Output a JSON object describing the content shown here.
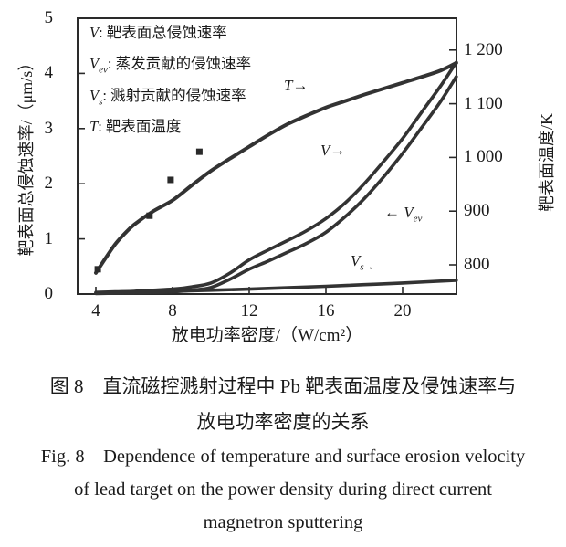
{
  "colors": {
    "curve": "#333333",
    "axis": "#2a2a2a",
    "text": "#1a1a1a",
    "background": "#ffffff"
  },
  "legend": {
    "items": [
      {
        "sym": "V",
        "sub": "",
        "desc": ": 靶表面总侵蚀速率"
      },
      {
        "sym": "V",
        "sub": "ev",
        "desc": ": 蒸发贡献的侵蚀速率"
      },
      {
        "sym": "V",
        "sub": "s",
        "desc": ": 溅射贡献的侵蚀速率"
      },
      {
        "sym": "T",
        "sub": "",
        "desc": ": 靶表面温度"
      }
    ]
  },
  "curve_labels": {
    "t": {
      "pre": "",
      "sym": "T",
      "sub": "",
      "arrow": "→"
    },
    "v": {
      "pre": "",
      "sym": "V",
      "sub": "",
      "arrow": "→"
    },
    "vev": {
      "pre": "← ",
      "sym": "V",
      "sub": "ev",
      "arrow": ""
    },
    "vs": {
      "pre": "",
      "sym": "V",
      "sub": "s→",
      "arrow": ""
    }
  },
  "figure": {
    "caption_zh_line1": "图 8　直流磁控溅射过程中 Pb 靶表面温度及侵蚀速率与",
    "caption_zh_line2": "放电功率密度的关系",
    "caption_en_line1": "Fig. 8　Dependence of temperature and surface erosion velocity",
    "caption_en_line2": "of lead target on the power density during direct current",
    "caption_en_line3": "magnetron sputtering"
  },
  "chart_data": {
    "type": "line",
    "title": "",
    "xlabel": "放电功率密度/（W/cm²）",
    "ylabel_left": "靶表面总侵蚀速率/（μm/s）",
    "ylabel_right": "靶表面温度/K",
    "xlim": [
      3.1,
      22.8
    ],
    "ylim_left": [
      0,
      5
    ],
    "ylim_right": [
      745,
      1258
    ],
    "x_tick_values": [
      4,
      8,
      12,
      16,
      20
    ],
    "x_tick_labels": [
      "4",
      "8",
      "12",
      "16",
      "20"
    ],
    "y_left_tick_values": [
      0,
      1,
      2,
      3,
      4,
      5
    ],
    "y_left_tick_labels": [
      "0",
      "1",
      "2",
      "3",
      "4",
      "5"
    ],
    "y_right_tick_values": [
      800,
      900,
      1000,
      1100,
      1200
    ],
    "y_right_tick_labels": [
      "800",
      "900",
      "1 000",
      "1 100",
      "1 200"
    ],
    "grid": false,
    "legend_position": "top-left",
    "series": [
      {
        "name": "T",
        "description": "靶表面温度 (target surface temperature, K)",
        "axis": "right",
        "width": 4,
        "points": [
          [
            4,
            785
          ],
          [
            4.5,
            812
          ],
          [
            5,
            838
          ],
          [
            5.5,
            858
          ],
          [
            6,
            875
          ],
          [
            7,
            900
          ],
          [
            8,
            920
          ],
          [
            9,
            948
          ],
          [
            10,
            975
          ],
          [
            11,
            998
          ],
          [
            12,
            1020
          ],
          [
            13,
            1042
          ],
          [
            14,
            1062
          ],
          [
            15,
            1078
          ],
          [
            16,
            1093
          ],
          [
            17,
            1105
          ],
          [
            18,
            1117
          ],
          [
            19,
            1128
          ],
          [
            20,
            1139
          ],
          [
            21,
            1150
          ],
          [
            22,
            1162
          ],
          [
            22.8,
            1176
          ]
        ]
      },
      {
        "name": "V",
        "description": "靶表面总侵蚀速率 (total erosion velocity, μm/s)",
        "axis": "left",
        "width": 3.6,
        "points": [
          [
            4,
            0.03
          ],
          [
            5,
            0.04
          ],
          [
            6,
            0.05
          ],
          [
            7,
            0.07
          ],
          [
            8,
            0.09
          ],
          [
            9,
            0.13
          ],
          [
            10,
            0.2
          ],
          [
            11,
            0.38
          ],
          [
            12,
            0.62
          ],
          [
            13,
            0.8
          ],
          [
            14,
            0.97
          ],
          [
            15,
            1.15
          ],
          [
            16,
            1.37
          ],
          [
            17,
            1.65
          ],
          [
            18,
            2.0
          ],
          [
            19,
            2.4
          ],
          [
            20,
            2.82
          ],
          [
            21,
            3.3
          ],
          [
            22,
            3.78
          ],
          [
            22.8,
            4.2
          ]
        ]
      },
      {
        "name": "Vev",
        "description": "蒸发贡献的侵蚀速率 (evaporation contribution, μm/s)",
        "axis": "left",
        "width": 3.6,
        "points": [
          [
            4,
            0.01
          ],
          [
            5,
            0.015
          ],
          [
            6,
            0.02
          ],
          [
            7,
            0.03
          ],
          [
            8,
            0.04
          ],
          [
            9,
            0.07
          ],
          [
            10,
            0.12
          ],
          [
            11,
            0.27
          ],
          [
            12,
            0.45
          ],
          [
            13,
            0.6
          ],
          [
            14,
            0.76
          ],
          [
            15,
            0.92
          ],
          [
            16,
            1.12
          ],
          [
            17,
            1.4
          ],
          [
            18,
            1.73
          ],
          [
            19,
            2.12
          ],
          [
            20,
            2.55
          ],
          [
            21,
            3.02
          ],
          [
            22,
            3.5
          ],
          [
            22.8,
            3.94
          ]
        ]
      },
      {
        "name": "Vs",
        "description": "溅射贡献的侵蚀速率 (sputtering contribution, μm/s)",
        "axis": "left",
        "width": 3.6,
        "points": [
          [
            4,
            0.02
          ],
          [
            6,
            0.035
          ],
          [
            8,
            0.05
          ],
          [
            10,
            0.07
          ],
          [
            12,
            0.09
          ],
          [
            14,
            0.115
          ],
          [
            16,
            0.14
          ],
          [
            18,
            0.17
          ],
          [
            20,
            0.2
          ],
          [
            22.8,
            0.25
          ]
        ]
      }
    ],
    "scatter": {
      "name": "measured-points",
      "marker": "square",
      "axis": "left",
      "points": [
        [
          4.1,
          0.45
        ],
        [
          6.8,
          1.42
        ],
        [
          7.9,
          2.07
        ],
        [
          9.4,
          2.58
        ]
      ]
    }
  }
}
